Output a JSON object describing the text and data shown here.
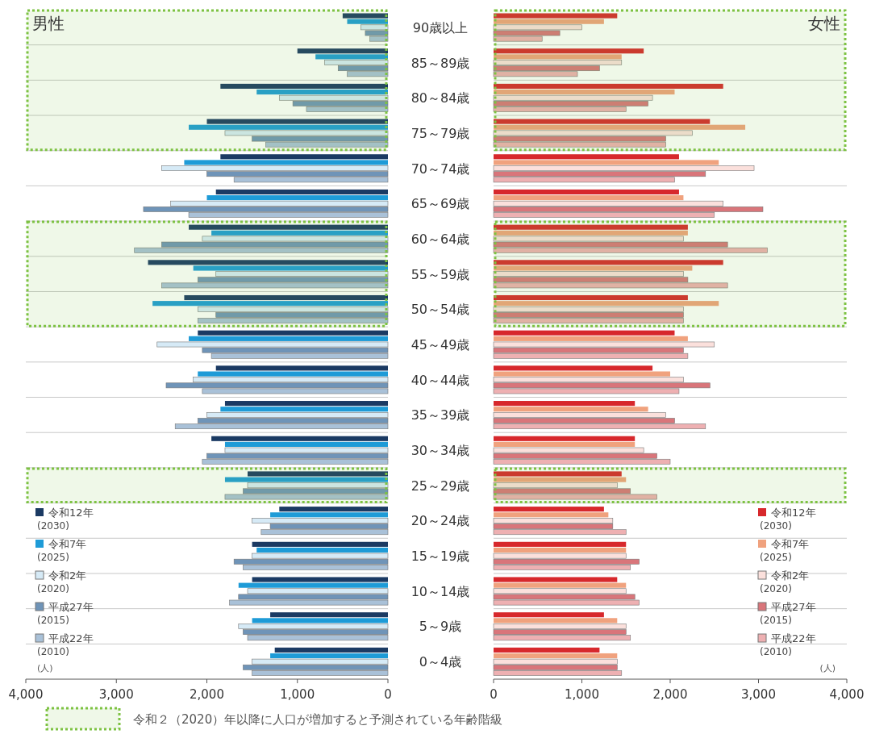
{
  "chart_data": [
    {
      "type": "bar",
      "orientation": "horizontal",
      "title": "男性",
      "categories": [
        "90歳以上",
        "85～89歳",
        "80～84歳",
        "75～79歳",
        "70～74歳",
        "65～69歳",
        "60～64歳",
        "55～59歳",
        "50～54歳",
        "45～49歳",
        "40～44歳",
        "35～39歳",
        "30～34歳",
        "25～29歳",
        "20～24歳",
        "15～19歳",
        "10～14歳",
        "5～9歳",
        "0～4歳"
      ],
      "xlim": [
        4000,
        0
      ],
      "xticks": [
        {
          "value": 4000,
          "label": "4,000"
        },
        {
          "value": 3000,
          "label": "3,000"
        },
        {
          "value": 2000,
          "label": "2,000"
        },
        {
          "value": 1000,
          "label": "1,000"
        },
        0
      ],
      "grid": "y",
      "legend": "bottom left",
      "series": [
        {
          "name": "令和12年 (2030)",
          "color": "#1b3a63",
          "values": [
            500,
            1000,
            1850,
            2000,
            1850,
            1900,
            2200,
            2650,
            2250,
            2100,
            1900,
            1800,
            1950,
            1550,
            1200,
            1500,
            1500,
            1300,
            1250
          ]
        },
        {
          "name": "令和7年 (2025)",
          "color": "#1e9bd7",
          "values": [
            450,
            800,
            1450,
            2200,
            2250,
            2000,
            1950,
            2150,
            2600,
            2200,
            2100,
            1850,
            1800,
            1800,
            1300,
            1450,
            1650,
            1500,
            1300
          ]
        },
        {
          "name": "令和2年 (2020)",
          "color": "#d6eaf6",
          "values": [
            300,
            700,
            1200,
            1800,
            2500,
            2400,
            2050,
            1900,
            2100,
            2550,
            2150,
            2000,
            1800,
            1550,
            1500,
            1500,
            1550,
            1650,
            1500
          ]
        },
        {
          "name": "平成27年 (2015)",
          "color": "#6f94b8",
          "values": [
            250,
            550,
            1050,
            1500,
            2000,
            2700,
            2500,
            2100,
            1900,
            2050,
            2450,
            2100,
            2000,
            1600,
            1300,
            1700,
            1650,
            1600,
            1600
          ]
        },
        {
          "name": "平成22年 (2010)",
          "color": "#a9c1d8",
          "values": [
            200,
            450,
            900,
            1350,
            1700,
            2200,
            2800,
            2500,
            2100,
            1950,
            2050,
            2350,
            2050,
            1800,
            1400,
            1600,
            1750,
            1550,
            1500
          ]
        }
      ],
      "bands": [
        {
          "axis": "y",
          "from": "90歳以上",
          "to": "75～79歳",
          "color": "#7dc242"
        },
        {
          "axis": "y",
          "from": "60～64歳",
          "to": "50～54歳",
          "color": "#7dc242"
        },
        {
          "axis": "y",
          "from": "25～29歳",
          "to": "25～29歳",
          "color": "#7dc242"
        }
      ],
      "annotations": [
        "(人)",
        "令和２（2020）年以降に人口が増加すると予測されている年齢階級"
      ]
    },
    {
      "type": "bar",
      "orientation": "horizontal",
      "title": "女性",
      "categories": [
        "90歳以上",
        "85～89歳",
        "80～84歳",
        "75～79歳",
        "70～74歳",
        "65～69歳",
        "60～64歳",
        "55～59歳",
        "50～54歳",
        "45～49歳",
        "40～44歳",
        "35～39歳",
        "30～34歳",
        "25～29歳",
        "20～24歳",
        "15～19歳",
        "10～14歳",
        "5～9歳",
        "0～4歳"
      ],
      "tick_labels": "x",
      "xlim": [
        0,
        4000
      ],
      "xticks": [
        0,
        {
          "value": 1000,
          "label": "1,000"
        },
        {
          "value": 2000,
          "label": "2,000"
        },
        {
          "value": 3000,
          "label": "3,000"
        },
        {
          "value": 4000,
          "label": "4,000"
        }
      ],
      "grid": "y",
      "legend": "bottom right",
      "series": [
        {
          "name": "令和12年 (2030)",
          "color": "#d7282c",
          "values": [
            1400,
            1700,
            2600,
            2450,
            2100,
            2100,
            2200,
            2600,
            2200,
            2050,
            1800,
            1600,
            1600,
            1450,
            1250,
            1500,
            1400,
            1250,
            1200
          ]
        },
        {
          "name": "令和7年 (2025)",
          "color": "#f0a27e",
          "values": [
            1250,
            1450,
            2050,
            2850,
            2550,
            2150,
            2200,
            2250,
            2550,
            2200,
            2000,
            1750,
            1600,
            1500,
            1300,
            1500,
            1500,
            1400,
            1400
          ]
        },
        {
          "name": "令和2年 (2020)",
          "color": "#fbe0dc",
          "values": [
            1000,
            1450,
            1800,
            2250,
            2950,
            2600,
            2150,
            2150,
            2150,
            2500,
            2150,
            1950,
            1700,
            1400,
            1350,
            1500,
            1500,
            1500,
            1400
          ]
        },
        {
          "name": "平成27年 (2015)",
          "color": "#d9757a",
          "values": [
            750,
            1200,
            1750,
            1950,
            2400,
            3050,
            2650,
            2200,
            2150,
            2150,
            2450,
            2050,
            1850,
            1550,
            1350,
            1650,
            1600,
            1500,
            1400
          ]
        },
        {
          "name": "平成22年 (2010)",
          "color": "#eeb0b2",
          "values": [
            550,
            950,
            1500,
            1950,
            2050,
            2500,
            3100,
            2650,
            2150,
            2200,
            2100,
            2400,
            2000,
            1850,
            1500,
            1550,
            1650,
            1550,
            1450
          ]
        }
      ],
      "bands": [
        {
          "axis": "y",
          "from": "90歳以上",
          "to": "75～79歳",
          "color": "#7dc242"
        },
        {
          "axis": "y",
          "from": "60～64歳",
          "to": "50～54歳",
          "color": "#7dc242"
        },
        {
          "axis": "y",
          "from": "25～29歳",
          "to": "25～29歳",
          "color": "#7dc242"
        }
      ],
      "annotations": [
        "(人)"
      ]
    }
  ]
}
